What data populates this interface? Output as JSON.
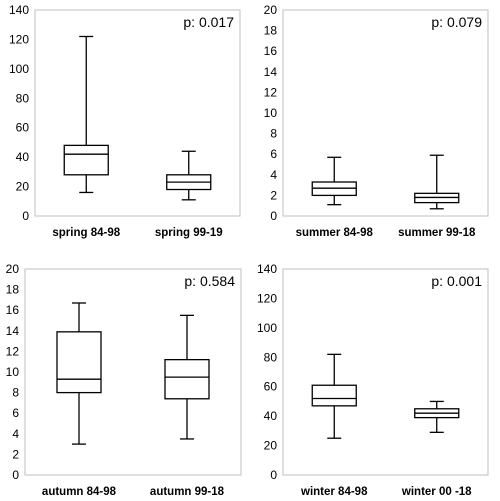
{
  "chart_data": [
    {
      "type": "boxplot",
      "ylim": [
        0,
        140
      ],
      "yticks": [
        "0",
        "20",
        "40",
        "60",
        "80",
        "100",
        "120",
        "140"
      ],
      "categories": [
        "spring 84-98",
        "spring 99-19"
      ],
      "annotation": "p: 0.017",
      "boxes": [
        {
          "min": 16,
          "q1": 28,
          "median": 42,
          "q3": 48,
          "max": 122
        },
        {
          "min": 11,
          "q1": 18,
          "median": 23,
          "q3": 28,
          "max": 44
        }
      ]
    },
    {
      "type": "boxplot",
      "ylim": [
        0,
        20
      ],
      "yticks": [
        "0",
        "2",
        "4",
        "6",
        "8",
        "10",
        "12",
        "14",
        "16",
        "18",
        "20"
      ],
      "categories": [
        "summer 84-98",
        "summer 99-18"
      ],
      "annotation": "p: 0.079",
      "boxes": [
        {
          "min": 1.1,
          "q1": 2.0,
          "median": 2.7,
          "q3": 3.3,
          "max": 5.7
        },
        {
          "min": 0.7,
          "q1": 1.3,
          "median": 1.8,
          "q3": 2.2,
          "max": 5.9
        }
      ]
    },
    {
      "type": "boxplot",
      "ylim": [
        0,
        20
      ],
      "yticks": [
        "0",
        "2",
        "4",
        "6",
        "8",
        "10",
        "12",
        "14",
        "16",
        "18",
        "20"
      ],
      "categories": [
        "autumn 84-98",
        "autumn 99-18"
      ],
      "annotation": "p: 0.584",
      "boxes": [
        {
          "min": 3.0,
          "q1": 8.0,
          "median": 9.3,
          "q3": 13.9,
          "max": 16.7
        },
        {
          "min": 3.5,
          "q1": 7.4,
          "median": 9.5,
          "q3": 11.2,
          "max": 15.5
        }
      ]
    },
    {
      "type": "boxplot",
      "ylim": [
        0,
        140
      ],
      "yticks": [
        "0",
        "20",
        "40",
        "60",
        "80",
        "100",
        "120",
        "140"
      ],
      "categories": [
        "winter 84-98",
        "winter 00 -18"
      ],
      "annotation": "p: 0.001",
      "boxes": [
        {
          "min": 25,
          "q1": 47,
          "median": 52,
          "q3": 61,
          "max": 82
        },
        {
          "min": 29,
          "q1": 39,
          "median": 42,
          "q3": 45,
          "max": 50
        }
      ]
    }
  ]
}
